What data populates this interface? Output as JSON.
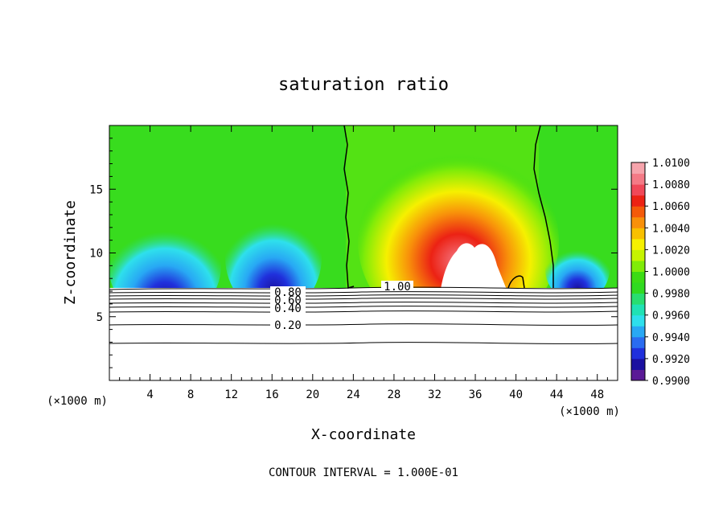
{
  "chart_data": {
    "type": "heatmap",
    "title": "saturation ratio",
    "xlabel": "X-coordinate",
    "ylabel": "Z-coordinate",
    "x_unit_left": "(×1000 m)",
    "x_unit_right": "(×1000 m)",
    "footer": "CONTOUR INTERVAL = 1.000E-01",
    "xlim": [
      0,
      50
    ],
    "ylim": [
      0,
      20
    ],
    "x_ticks": [
      4,
      8,
      12,
      16,
      20,
      24,
      28,
      32,
      36,
      40,
      44,
      48
    ],
    "y_ticks": [
      5,
      10,
      15
    ],
    "x_tick_labels": [
      "4",
      "8",
      "12",
      "16",
      "20",
      "24",
      "28",
      "32",
      "36",
      "40",
      "44",
      "48"
    ],
    "y_tick_labels": [
      "5",
      "10",
      "15"
    ],
    "colorbar": {
      "min": 0.99,
      "max": 1.01,
      "tick_labels": [
        "1.0100",
        "1.0080",
        "1.0060",
        "1.0040",
        "1.0020",
        "1.0000",
        "0.9980",
        "0.9960",
        "0.9940",
        "0.9920",
        "0.9900"
      ],
      "colors": [
        "#5a1a96",
        "#1a10a0",
        "#2030dc",
        "#2a6cf0",
        "#28a8f4",
        "#2ee0ec",
        "#20e2b4",
        "#28de70",
        "#30da20",
        "#3cdc14",
        "#80ec08",
        "#c6f400",
        "#f6f000",
        "#f8c000",
        "#f8900a",
        "#f45a0a",
        "#ec2214",
        "#f04858",
        "#f47a86",
        "#f6a4ac"
      ]
    },
    "contour_labels": [
      "1.00",
      "0.80",
      "0.60",
      "0.40",
      "0.20"
    ],
    "contour_levels": [
      0.2,
      0.4,
      0.6,
      0.8,
      1.0
    ]
  }
}
